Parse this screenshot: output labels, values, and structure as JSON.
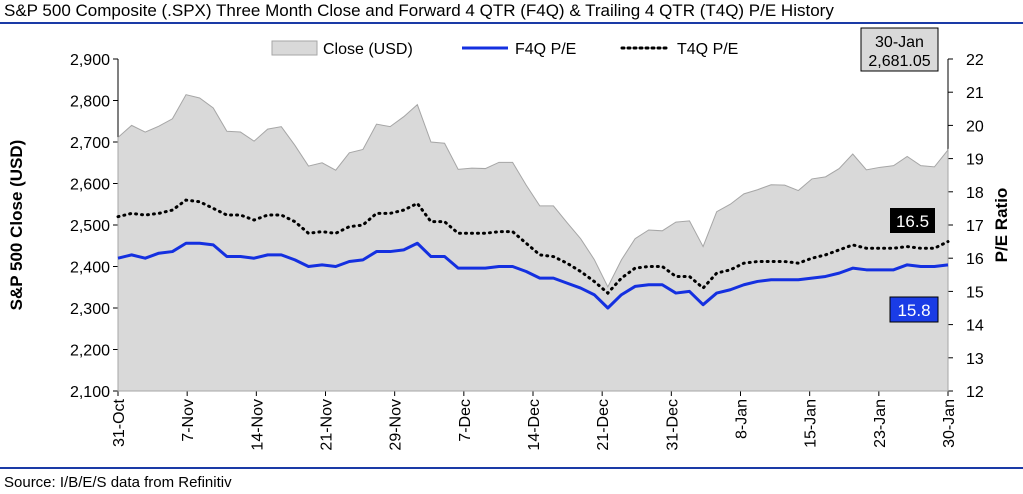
{
  "title": "S&P 500 Composite (.SPX) Three Month Close and Forward 4 QTR (F4Q) & Trailing 4 QTR (T4Q) P/E History",
  "source": "Source: I/B/E/S data from Refinitiv",
  "callouts": {
    "date": "30-Jan",
    "close": "2,681.05",
    "t4q": "16.5",
    "f4q": "15.8"
  },
  "colors": {
    "area_fill": "#d9d9d9",
    "area_stroke": "#a6a6a6",
    "f4q": "#1430e0",
    "t4q": "#000000",
    "f4q_label_bg": "#1a3ce6",
    "t4q_label_bg": "#000000",
    "rules": "#1a3aa6"
  },
  "chart_data": {
    "type": "area",
    "x_tick_labels": [
      "31-Oct",
      "7-Nov",
      "14-Nov",
      "21-Nov",
      "29-Nov",
      "7-Dec",
      "14-Dec",
      "21-Dec",
      "31-Dec",
      "8-Jan",
      "15-Jan",
      "23-Jan",
      "30-Jan"
    ],
    "left_axis": {
      "label": "S&P 500 Close (USD)",
      "ylim": [
        2100,
        2900
      ],
      "ticks": [
        "2,100",
        "2,200",
        "2,300",
        "2,400",
        "2,500",
        "2,600",
        "2,700",
        "2,800",
        "2,900"
      ]
    },
    "right_axis": {
      "label": "P/E Ratio",
      "ylim": [
        12,
        22
      ],
      "ticks": [
        "12",
        "13",
        "14",
        "15",
        "16",
        "17",
        "18",
        "19",
        "20",
        "21",
        "22"
      ]
    },
    "legend_position": "top",
    "series": [
      {
        "name": "Close (USD)",
        "axis": "left",
        "style": "area",
        "values": [
          2711,
          2740,
          2724,
          2738,
          2756,
          2814,
          2806,
          2782,
          2726,
          2724,
          2702,
          2731,
          2737,
          2692,
          2642,
          2650,
          2632,
          2674,
          2682,
          2743,
          2737,
          2761,
          2790,
          2700,
          2697,
          2634,
          2637,
          2636,
          2651,
          2651,
          2596,
          2546,
          2546,
          2506,
          2467,
          2417,
          2351,
          2416,
          2467,
          2488,
          2486,
          2507,
          2510,
          2448,
          2532,
          2550,
          2575,
          2585,
          2597,
          2596,
          2583,
          2611,
          2616,
          2636,
          2671,
          2633,
          2639,
          2643,
          2665,
          2643,
          2640,
          2681
        ]
      },
      {
        "name": "F4Q P/E",
        "axis": "right",
        "style": "line",
        "values": [
          16.0,
          16.1,
          16.0,
          16.15,
          16.2,
          16.45,
          16.45,
          16.4,
          16.05,
          16.05,
          16.0,
          16.1,
          16.1,
          15.95,
          15.75,
          15.8,
          15.75,
          15.9,
          15.95,
          16.2,
          16.2,
          16.25,
          16.45,
          16.05,
          16.05,
          15.7,
          15.7,
          15.7,
          15.75,
          15.75,
          15.6,
          15.4,
          15.4,
          15.25,
          15.1,
          14.9,
          14.5,
          14.9,
          15.15,
          15.2,
          15.2,
          14.95,
          15.0,
          14.6,
          14.95,
          15.05,
          15.2,
          15.3,
          15.35,
          15.35,
          15.35,
          15.4,
          15.45,
          15.55,
          15.7,
          15.65,
          15.65,
          15.65,
          15.8,
          15.75,
          15.75,
          15.8
        ]
      },
      {
        "name": "T4Q P/E",
        "axis": "right",
        "style": "dotted",
        "values": [
          17.25,
          17.35,
          17.3,
          17.35,
          17.45,
          17.75,
          17.7,
          17.5,
          17.3,
          17.3,
          17.15,
          17.3,
          17.3,
          17.1,
          16.75,
          16.8,
          16.75,
          16.95,
          17.0,
          17.35,
          17.35,
          17.45,
          17.65,
          17.1,
          17.1,
          16.75,
          16.75,
          16.75,
          16.8,
          16.8,
          16.45,
          16.1,
          16.05,
          15.85,
          15.6,
          15.3,
          14.95,
          15.4,
          15.7,
          15.75,
          15.75,
          15.45,
          15.45,
          15.1,
          15.55,
          15.65,
          15.85,
          15.9,
          15.9,
          15.9,
          15.85,
          16.0,
          16.1,
          16.25,
          16.4,
          16.3,
          16.3,
          16.3,
          16.35,
          16.3,
          16.3,
          16.5
        ]
      }
    ]
  }
}
